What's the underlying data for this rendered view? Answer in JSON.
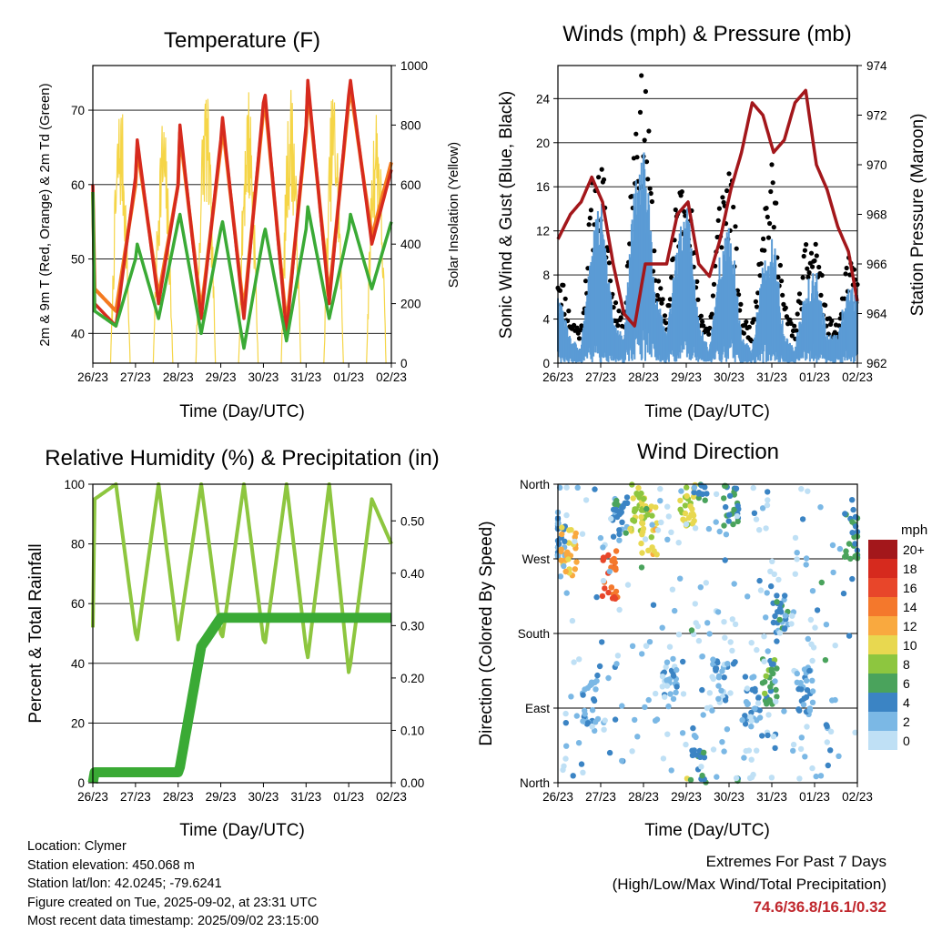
{
  "x_ticks": [
    "26/23",
    "27/23",
    "28/23",
    "29/23",
    "30/23",
    "31/23",
    "01/23",
    "02/23"
  ],
  "colors": {
    "t2m": "#d62a1e",
    "t9m": "#f47a20",
    "td": "#3aaa35",
    "solar": "#f5d547",
    "rh": "#8dc63f",
    "precip": "#3aaa35",
    "gust": "#000000",
    "wind": "#5b9bd5",
    "pressure": "#a3171b",
    "extremes": "#c0272d"
  },
  "chart_data": [
    {
      "type": "line",
      "title": "Temperature (F)",
      "xlabel": "Time (Day/UTC)",
      "ylabel": "2m & 9m T (Red, Orange) & 2m Td (Green)",
      "ylabel_right": "Solar Insolation (Yellow)",
      "ylim": [
        36,
        76
      ],
      "y_ticks": [
        40,
        50,
        60,
        70
      ],
      "ylim_right": [
        0,
        1000
      ],
      "y_ticks_right": [
        0,
        200,
        400,
        600,
        800,
        1000
      ],
      "x": [
        "26/23",
        "27/00",
        "27/12",
        "27/23",
        "28/00",
        "28/12",
        "28/23",
        "29/00",
        "29/12",
        "29/23",
        "30/00",
        "30/12",
        "30/23",
        "31/00",
        "31/12",
        "31/23",
        "01/00",
        "01/12",
        "01/23",
        "02/00",
        "02/12",
        "02/23"
      ],
      "series": [
        {
          "name": "2m T",
          "values": [
            60,
            44,
            41,
            61,
            66,
            44,
            60,
            68,
            42,
            66,
            69,
            42,
            71,
            72,
            40,
            68,
            74,
            44,
            72,
            74,
            52,
            62
          ]
        },
        {
          "name": "9m T",
          "values": [
            59,
            46,
            43,
            60,
            65,
            45,
            60,
            67,
            43,
            65,
            68,
            43,
            70,
            71,
            41,
            67,
            73,
            45,
            71,
            73,
            53,
            63
          ]
        },
        {
          "name": "2m Td",
          "values": [
            59,
            43,
            41,
            50,
            52,
            42,
            55,
            56,
            40,
            54,
            55,
            38,
            53,
            54,
            39,
            54,
            57,
            42,
            54,
            56,
            46,
            55
          ]
        },
        {
          "name": "Solar Insolation",
          "values": [
            0,
            0,
            0,
            900,
            950,
            0,
            850,
            1000,
            0,
            950,
            1000,
            0,
            950,
            1000,
            0,
            950,
            1000,
            0,
            950,
            1000,
            0,
            900
          ]
        }
      ]
    },
    {
      "type": "line",
      "title": "Winds (mph) & Pressure (mb)",
      "xlabel": "Time (Day/UTC)",
      "ylabel": "Sonic Wind & Gust (Blue, Black)",
      "ylabel_right": "Station Pressure (Maroon)",
      "ylim": [
        0,
        27
      ],
      "y_ticks": [
        0,
        4,
        8,
        12,
        16,
        20,
        24
      ],
      "ylim_right": [
        962,
        974
      ],
      "y_ticks_right": [
        962,
        964,
        966,
        968,
        970,
        972,
        974
      ],
      "x": [
        "26/23",
        "27/06",
        "27/12",
        "27/18",
        "28/00",
        "28/06",
        "28/12",
        "28/18",
        "29/00",
        "29/06",
        "29/12",
        "29/18",
        "30/00",
        "30/06",
        "30/12",
        "30/18",
        "31/00",
        "31/06",
        "31/12",
        "31/18",
        "01/00",
        "01/06",
        "01/12",
        "01/18",
        "02/00",
        "02/06",
        "02/12",
        "02/18",
        "02/23"
      ],
      "series": [
        {
          "name": "Gust",
          "values": [
            9,
            4,
            3,
            15,
            17,
            6,
            4,
            22,
            25,
            8,
            4,
            15,
            17,
            5,
            3,
            15,
            17,
            4,
            3,
            14,
            17,
            5,
            3,
            10,
            11,
            4,
            3,
            9,
            8
          ]
        },
        {
          "name": "Wind",
          "values": [
            5,
            2,
            1,
            9,
            12,
            3,
            2,
            13,
            15,
            5,
            2,
            9,
            11,
            3,
            1,
            8,
            10,
            2,
            1,
            7,
            9,
            2,
            1,
            6,
            7,
            2,
            2,
            6,
            5
          ]
        },
        {
          "name": "Station Pressure",
          "values": [
            967,
            968,
            968.5,
            969.5,
            968.5,
            966,
            964,
            963.5,
            966,
            966,
            966,
            968,
            968.5,
            966,
            965.5,
            967,
            969,
            970.5,
            972.5,
            972,
            970.5,
            971,
            972.5,
            973,
            970,
            969,
            967.5,
            966.5,
            964.5
          ]
        }
      ]
    },
    {
      "type": "line",
      "title": "Relative Humidity (%) & Precipitation (in)",
      "xlabel": "Time (Day/UTC)",
      "ylabel": "Percent & Total Rainfall",
      "ylim": [
        0,
        100
      ],
      "y_ticks": [
        0,
        20,
        40,
        60,
        80,
        100
      ],
      "ylim_right": [
        0,
        0.57
      ],
      "y_ticks_right": [
        "0.00",
        "0.10",
        "0.20",
        "0.30",
        "0.40",
        "0.50"
      ],
      "x": [
        "26/23",
        "27/00",
        "27/12",
        "27/23",
        "28/00",
        "28/12",
        "28/23",
        "29/00",
        "29/12",
        "29/23",
        "30/00",
        "30/12",
        "30/23",
        "31/00",
        "31/12",
        "31/23",
        "01/00",
        "01/12",
        "01/23",
        "02/00",
        "02/12",
        "02/23"
      ],
      "series": [
        {
          "name": "Relative Humidity",
          "values": [
            52,
            95,
            100,
            50,
            48,
            100,
            48,
            52,
            100,
            50,
            49,
            100,
            48,
            47,
            100,
            45,
            42,
            100,
            37,
            40,
            95,
            80
          ]
        },
        {
          "name": "Total Precipitation",
          "values": [
            0.0,
            0.02,
            0.02,
            0.02,
            0.02,
            0.02,
            0.02,
            0.03,
            0.26,
            0.315,
            0.315,
            0.315,
            0.315,
            0.315,
            0.315,
            0.315,
            0.315,
            0.315,
            0.315,
            0.315,
            0.315,
            0.315
          ]
        }
      ]
    },
    {
      "type": "scatter",
      "title": "Wind Direction",
      "xlabel": "Time (Day/UTC)",
      "ylabel": "Direction (Colored By Speed)",
      "y_ticks": [
        "North",
        "East",
        "South",
        "West",
        "North"
      ],
      "colorbar_title": "mph",
      "colorbar_labels": [
        "20+",
        "18",
        "16",
        "14",
        "12",
        "10",
        "8",
        "6",
        "4",
        "2",
        "0"
      ],
      "colorbar_colors": [
        "#a3171b",
        "#d62a1e",
        "#e8462a",
        "#f4782c",
        "#f9a93f",
        "#e8d850",
        "#8dc63f",
        "#4aa35c",
        "#3b84c4",
        "#7bb8e5",
        "#bfe0f5"
      ],
      "clusters": [
        {
          "x": "26/23",
          "direction_deg": 300,
          "speed": 3
        },
        {
          "x": "27/05",
          "direction_deg": 280,
          "speed": 11
        },
        {
          "x": "27/17",
          "direction_deg": 100,
          "speed": 3
        },
        {
          "x": "28/04",
          "direction_deg": 250,
          "speed": 15
        },
        {
          "x": "28/10",
          "direction_deg": 320,
          "speed": 4
        },
        {
          "x": "28/20",
          "direction_deg": 330,
          "speed": 9
        },
        {
          "x": "29/02",
          "direction_deg": 305,
          "speed": 10
        },
        {
          "x": "29/14",
          "direction_deg": 120,
          "speed": 2
        },
        {
          "x": "30/00",
          "direction_deg": 340,
          "speed": 9
        },
        {
          "x": "30/06",
          "direction_deg": 10,
          "speed": 5
        },
        {
          "x": "30/18",
          "direction_deg": 120,
          "speed": 2
        },
        {
          "x": "31/00",
          "direction_deg": 340,
          "speed": 5
        },
        {
          "x": "31/12",
          "direction_deg": 100,
          "speed": 3
        },
        {
          "x": "31/22",
          "direction_deg": 120,
          "speed": 6
        },
        {
          "x": "01/04",
          "direction_deg": 200,
          "speed": 4
        },
        {
          "x": "01/18",
          "direction_deg": 110,
          "speed": 3
        },
        {
          "x": "02/20",
          "direction_deg": 300,
          "speed": 5
        }
      ]
    }
  ],
  "meta": {
    "location": "Location: Clymer",
    "elevation": "Station elevation: 450.068 m",
    "latlon": "Station lat/lon: 42.0245; -79.6241",
    "created": "Figure created on Tue, 2025-09-02, at 23:31 UTC",
    "latest": "Most recent data timestamp: 2025/09/02 23:15:00"
  },
  "extremes": {
    "title": "Extremes For Past 7 Days",
    "subtitle": "(High/Low/Max Wind/Total Precipitation)",
    "values": "74.6/36.8/16.1/0.32"
  }
}
